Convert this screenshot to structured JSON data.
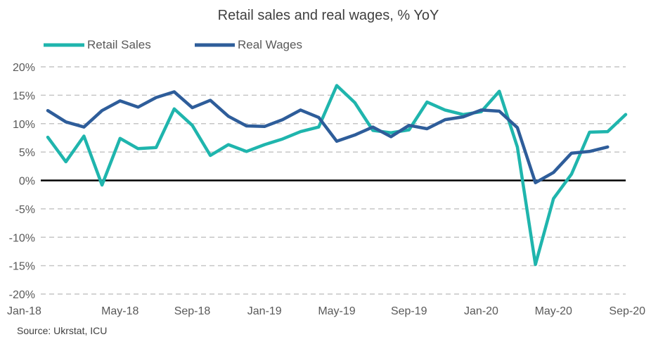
{
  "chart_data": {
    "type": "line",
    "title": "Retail sales and real wages, % YoY",
    "source": "Source: Ukrstat, ICU",
    "ylim": [
      -20,
      20
    ],
    "y_ticks": [
      20,
      15,
      10,
      5,
      0,
      -5,
      -10,
      -15,
      -20
    ],
    "y_tick_labels": [
      "20%",
      "15%",
      "10%",
      "5%",
      "0%",
      "-5%",
      "-10%",
      "-15%",
      "-20%"
    ],
    "x_tick_labels": [
      "Jan-18",
      "May-18",
      "Sep-18",
      "Jan-19",
      "May-19",
      "Sep-19",
      "Jan-20",
      "May-20",
      "Sep-20"
    ],
    "x_tick_index": [
      0,
      4,
      8,
      12,
      16,
      20,
      24,
      28,
      32
    ],
    "grid": true,
    "legend_position": "top-left",
    "x": [
      "Jan-18",
      "Feb-18",
      "Mar-18",
      "Apr-18",
      "May-18",
      "Jun-18",
      "Jul-18",
      "Aug-18",
      "Sep-18",
      "Oct-18",
      "Nov-18",
      "Dec-18",
      "Jan-19",
      "Feb-19",
      "Mar-19",
      "Apr-19",
      "May-19",
      "Jun-19",
      "Jul-19",
      "Aug-19",
      "Sep-19",
      "Oct-19",
      "Nov-19",
      "Dec-19",
      "Jan-20",
      "Feb-20",
      "Mar-20",
      "Apr-20",
      "May-20",
      "Jun-20",
      "Jul-20",
      "Aug-20",
      "Sep-20"
    ],
    "series": [
      {
        "name": "Retail Sales",
        "color": "#1fb5ad",
        "values": [
          7.6,
          3.3,
          7.8,
          -0.8,
          7.4,
          5.6,
          5.8,
          12.6,
          9.7,
          4.4,
          6.3,
          5.1,
          6.3,
          7.3,
          8.6,
          9.4,
          16.7,
          13.7,
          8.8,
          8.4,
          8.9,
          13.8,
          12.4,
          11.6,
          12.1,
          15.7,
          5.9,
          -14.8,
          -3.2,
          1.1,
          8.5,
          8.6,
          11.6
        ]
      },
      {
        "name": "Real Wages",
        "color": "#2e5d9a",
        "values": [
          12.3,
          10.3,
          9.4,
          12.3,
          14.0,
          12.9,
          14.6,
          15.6,
          12.8,
          14.1,
          11.3,
          9.6,
          9.5,
          10.7,
          12.4,
          11.1,
          6.9,
          8.0,
          9.4,
          7.7,
          9.7,
          9.1,
          10.7,
          11.2,
          12.4,
          12.2,
          9.3,
          -0.4,
          1.4,
          4.8,
          5.1,
          5.9,
          null
        ]
      }
    ]
  }
}
